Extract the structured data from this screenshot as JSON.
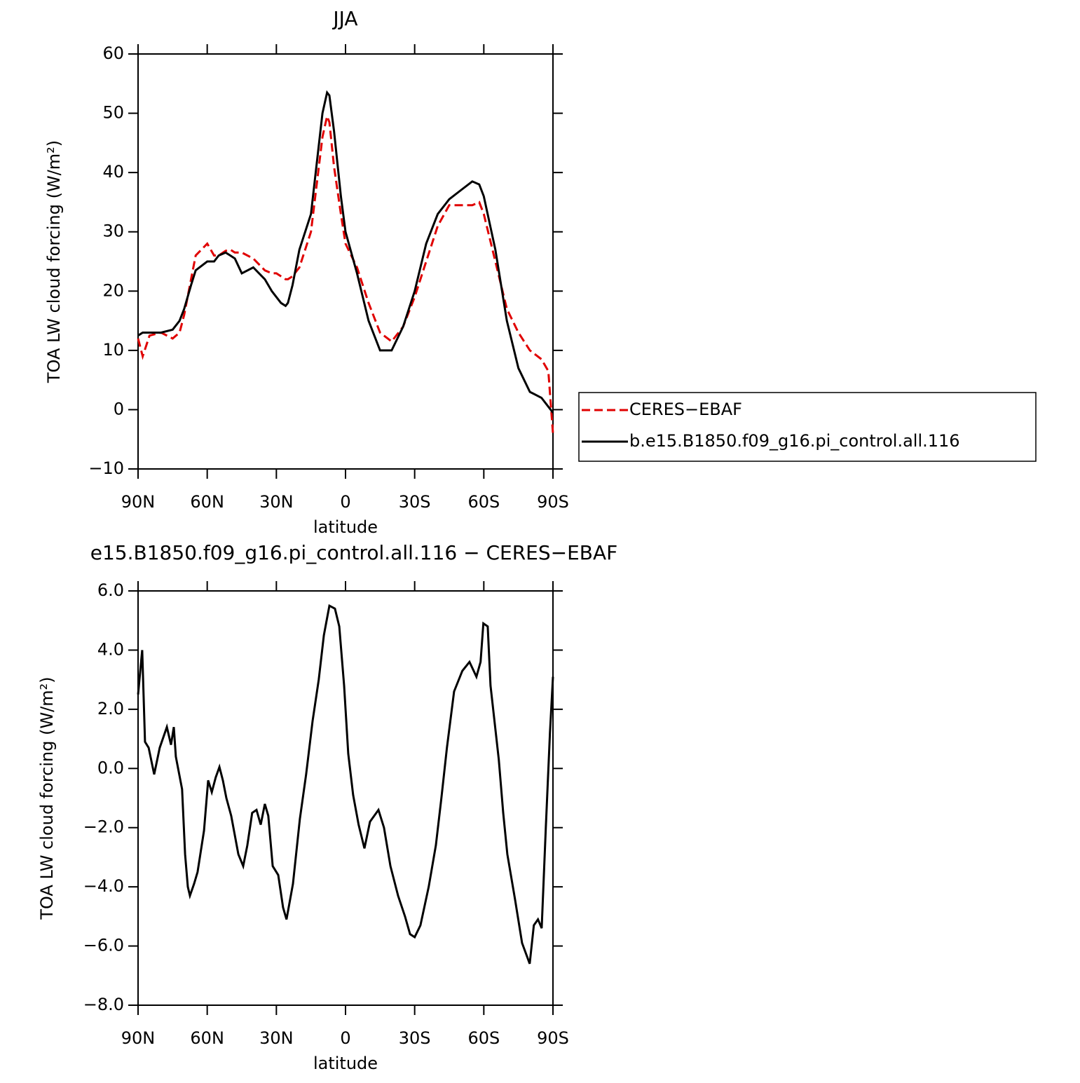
{
  "chart_data": [
    {
      "type": "line",
      "title": "JJA",
      "xlabel": "latitude",
      "ylabel": "TOA LW cloud forcing (W/m²)",
      "x": [
        90,
        88,
        85,
        80,
        75,
        72,
        70,
        67,
        65,
        60,
        57,
        55,
        52,
        50,
        48,
        45,
        40,
        35,
        32,
        30,
        28,
        26,
        25,
        23,
        20,
        15,
        10,
        8,
        7,
        5,
        2,
        0,
        -5,
        -10,
        -15,
        -20,
        -25,
        -30,
        -35,
        -40,
        -45,
        -50,
        -55,
        -58,
        -60,
        -65,
        -70,
        -75,
        -80,
        -85,
        -88,
        -90
      ],
      "xlim": [
        90,
        -90
      ],
      "xticks": [
        {
          "value": 90,
          "label": "90N"
        },
        {
          "value": 60,
          "label": "60N"
        },
        {
          "value": 30,
          "label": "30N"
        },
        0,
        {
          "value": -30,
          "label": "30S"
        },
        {
          "value": -60,
          "label": "60S"
        },
        {
          "value": -90,
          "label": "90S"
        }
      ],
      "ylim": [
        -10,
        60
      ],
      "yticks": [
        {
          "value": -10,
          "label": "−10"
        },
        0,
        10,
        20,
        30,
        40,
        50,
        60
      ],
      "legend": "right",
      "series": [
        {
          "name": "CERES−EBAF",
          "color": "#e00000",
          "linestyle": "dashed",
          "values": [
            12,
            9,
            12.5,
            13,
            12,
            13,
            16,
            22,
            26,
            28,
            26,
            26,
            26.8,
            27,
            26.5,
            26.5,
            25.5,
            23.5,
            23,
            23,
            22.5,
            22,
            22,
            22.5,
            24,
            30,
            46,
            49.5,
            48.5,
            41,
            33,
            28,
            24,
            18,
            13,
            11.5,
            14,
            19,
            25,
            31,
            34.5,
            34.5,
            34.5,
            35,
            33,
            25,
            17,
            13,
            10,
            8.5,
            6.5,
            -4
          ]
        },
        {
          "name": "b.e15.B1850.f09_g16.pi_control.all.116",
          "color": "#000000",
          "linestyle": "solid",
          "values": [
            12.5,
            13,
            13,
            13,
            13.5,
            15,
            17,
            21,
            23.5,
            25,
            25,
            26,
            26.5,
            26,
            25.5,
            23,
            24,
            22,
            20,
            19,
            18,
            17.5,
            18,
            21,
            27,
            33,
            50,
            53.5,
            53,
            47,
            36,
            30,
            23,
            15,
            10,
            10,
            14,
            20,
            28,
            33,
            35.5,
            37,
            38.5,
            38,
            36,
            27,
            15,
            7,
            3,
            2,
            0.5,
            -0.5
          ]
        }
      ]
    },
    {
      "type": "line",
      "title": "e15.B1850.f09_g16.pi_control.all.116 − CERES−EBAF",
      "xlabel": "latitude",
      "ylabel": "TOA LW cloud forcing (W/m²)",
      "x": [
        90,
        88.2,
        87,
        85.4,
        83,
        80.6,
        77.5,
        75.7,
        74.5,
        73.6,
        70.9,
        69.6,
        68.4,
        67.5,
        65.7,
        64.2,
        61.4,
        59.6,
        58,
        56.3,
        54.7,
        53.2,
        51.7,
        49.6,
        46.5,
        44.4,
        42.6,
        40.5,
        38.6,
        36.8,
        35,
        33.5,
        31.6,
        29.2,
        27.1,
        25.6,
        22.8,
        19.8,
        17.1,
        14.3,
        11.6,
        9.4,
        7,
        4.6,
        2.7,
        0.6,
        -1.2,
        -3.3,
        -5.7,
        -8.2,
        -10.6,
        -14.3,
        -16.7,
        -19.5,
        -22.8,
        -25.8,
        -28,
        -30,
        -32.5,
        -36.1,
        -39.2,
        -41.6,
        -44,
        -47.1,
        -50.7,
        -53.8,
        -56.8,
        -58.6,
        -59.8,
        -61.7,
        -62.9,
        -66.5,
        -68.4,
        -70.2,
        -73.5,
        -76.6,
        -79.9,
        -81.7,
        -83.5,
        -85.1,
        -86.9,
        -88.7,
        -90
      ],
      "xlim": [
        90,
        -90
      ],
      "xticks": [
        {
          "value": 90,
          "label": "90N"
        },
        {
          "value": 60,
          "label": "60N"
        },
        {
          "value": 30,
          "label": "30N"
        },
        0,
        {
          "value": -30,
          "label": "30S"
        },
        {
          "value": -60,
          "label": "60S"
        },
        {
          "value": -90,
          "label": "90S"
        }
      ],
      "ylim": [
        -8,
        6
      ],
      "yticks": [
        {
          "value": -8,
          "label": "−8.0"
        },
        {
          "value": -6,
          "label": "−6.0"
        },
        {
          "value": -4,
          "label": "−4.0"
        },
        {
          "value": -2,
          "label": "−2.0"
        },
        {
          "value": 0,
          "label": "0.0"
        },
        {
          "value": 2,
          "label": "2.0"
        },
        {
          "value": 4,
          "label": "4.0"
        },
        {
          "value": 6,
          "label": "6.0"
        }
      ],
      "series": [
        {
          "color": "#000000",
          "linestyle": "solid",
          "values": [
            2.5,
            4.0,
            0.9,
            0.7,
            -0.2,
            0.7,
            1.4,
            0.8,
            1.4,
            0.4,
            -0.7,
            -2.9,
            -4.0,
            -4.3,
            -3.9,
            -3.5,
            -2.1,
            -0.4,
            -0.8,
            -0.3,
            0.05,
            -0.4,
            -1.0,
            -1.6,
            -2.9,
            -3.3,
            -2.6,
            -1.5,
            -1.4,
            -1.9,
            -1.2,
            -1.6,
            -3.3,
            -3.6,
            -4.7,
            -5.1,
            -3.9,
            -1.7,
            -0.2,
            1.6,
            3.0,
            4.5,
            5.5,
            5.4,
            4.8,
            2.8,
            0.5,
            -0.9,
            -1.9,
            -2.7,
            -1.8,
            -1.4,
            -2.0,
            -3.3,
            -4.3,
            -5.0,
            -5.6,
            -5.7,
            -5.3,
            -4.0,
            -2.6,
            -1.0,
            0.7,
            2.6,
            3.3,
            3.6,
            3.1,
            3.6,
            4.9,
            4.8,
            2.8,
            0.3,
            -1.5,
            -2.9,
            -4.4,
            -5.9,
            -6.6,
            -5.3,
            -5.1,
            -5.4,
            -2.0,
            1.2,
            3.1
          ]
        }
      ]
    }
  ]
}
